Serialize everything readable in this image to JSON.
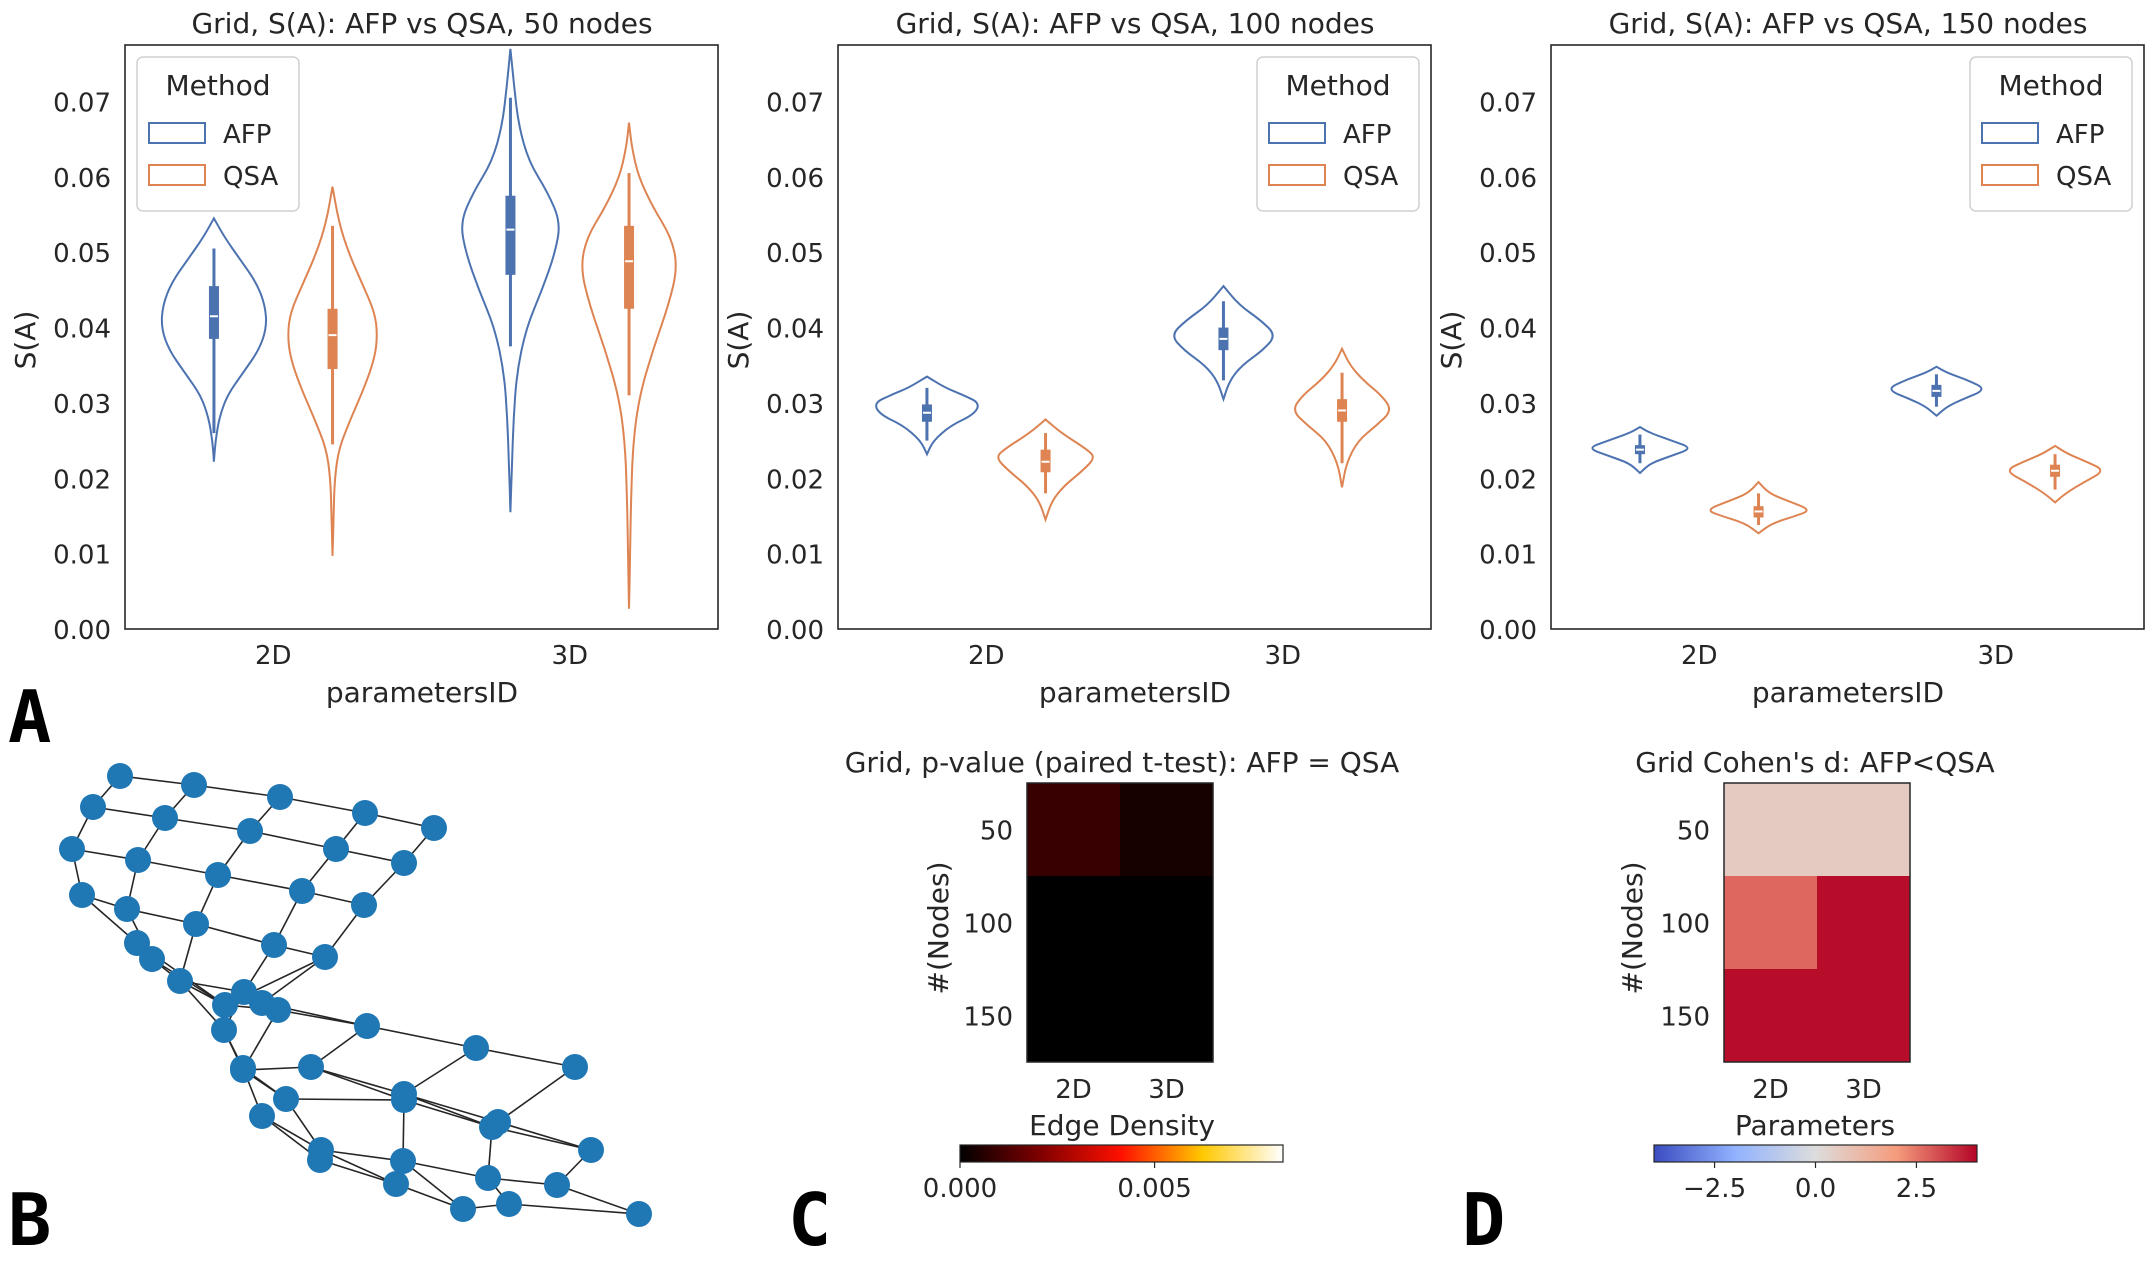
{
  "panels": {
    "A": "A",
    "B": "B",
    "C": "C",
    "D": "D"
  },
  "colors": {
    "afp": "#4c72b0",
    "qsa": "#dd8452",
    "node": "#1f77b4",
    "edge": "#262626"
  },
  "chart_data": [
    {
      "type": "violin",
      "id": "violin-50",
      "title": "Grid, S(A): AFP vs QSA, 50 nodes",
      "xlabel": "parametersID",
      "ylabel": "S(A)",
      "categories": [
        "2D",
        "3D"
      ],
      "ylim": [
        0,
        0.0775
      ],
      "yticks": [
        "0.00",
        "0.01",
        "0.02",
        "0.03",
        "0.04",
        "0.05",
        "0.06",
        "0.07"
      ],
      "legend": {
        "title": "Method",
        "position": "upper-left",
        "entries": [
          "AFP",
          "QSA"
        ]
      },
      "series": [
        {
          "name": "AFP",
          "violins": [
            {
              "category": "2D",
              "min": 0.0222,
              "max": 0.0545,
              "q1": 0.0385,
              "median": 0.0415,
              "q3": 0.0455,
              "wlo": 0.026,
              "whi": 0.0505,
              "profile": [
                [
                  0.0222,
                  0.0
                ],
                [
                  0.025,
                  0.03
                ],
                [
                  0.028,
                  0.1
                ],
                [
                  0.031,
                  0.25
                ],
                [
                  0.034,
                  0.55
                ],
                [
                  0.037,
                  0.85
                ],
                [
                  0.04,
                  1.0
                ],
                [
                  0.043,
                  0.97
                ],
                [
                  0.046,
                  0.8
                ],
                [
                  0.049,
                  0.5
                ],
                [
                  0.052,
                  0.2
                ],
                [
                  0.0545,
                  0.0
                ]
              ]
            },
            {
              "category": "3D",
              "min": 0.0155,
              "max": 0.077,
              "q1": 0.047,
              "median": 0.053,
              "q3": 0.0575,
              "wlo": 0.0375,
              "whi": 0.0705,
              "profile": [
                [
                  0.0155,
                  0.0
                ],
                [
                  0.022,
                  0.03
                ],
                [
                  0.028,
                  0.06
                ],
                [
                  0.034,
                  0.12
                ],
                [
                  0.04,
                  0.3
                ],
                [
                  0.045,
                  0.6
                ],
                [
                  0.05,
                  0.85
                ],
                [
                  0.054,
                  0.95
                ],
                [
                  0.058,
                  0.7
                ],
                [
                  0.062,
                  0.35
                ],
                [
                  0.067,
                  0.15
                ],
                [
                  0.072,
                  0.07
                ],
                [
                  0.077,
                  0.0
                ]
              ]
            }
          ]
        },
        {
          "name": "QSA",
          "violins": [
            {
              "category": "2D",
              "min": 0.0097,
              "max": 0.0587,
              "q1": 0.0345,
              "median": 0.039,
              "q3": 0.0425,
              "wlo": 0.0245,
              "whi": 0.0535,
              "profile": [
                [
                  0.0097,
                  0.0
                ],
                [
                  0.015,
                  0.02
                ],
                [
                  0.02,
                  0.04
                ],
                [
                  0.024,
                  0.12
                ],
                [
                  0.028,
                  0.35
                ],
                [
                  0.032,
                  0.6
                ],
                [
                  0.036,
                  0.8
                ],
                [
                  0.039,
                  0.85
                ],
                [
                  0.042,
                  0.8
                ],
                [
                  0.046,
                  0.55
                ],
                [
                  0.05,
                  0.3
                ],
                [
                  0.054,
                  0.12
                ],
                [
                  0.0587,
                  0.0
                ]
              ]
            },
            {
              "category": "3D",
              "min": 0.0027,
              "max": 0.0672,
              "q1": 0.0425,
              "median": 0.0488,
              "q3": 0.0535,
              "wlo": 0.031,
              "whi": 0.0605,
              "profile": [
                [
                  0.0027,
                  0.0
                ],
                [
                  0.01,
                  0.02
                ],
                [
                  0.018,
                  0.04
                ],
                [
                  0.025,
                  0.08
                ],
                [
                  0.031,
                  0.2
                ],
                [
                  0.037,
                  0.45
                ],
                [
                  0.043,
                  0.75
                ],
                [
                  0.048,
                  0.92
                ],
                [
                  0.052,
                  0.8
                ],
                [
                  0.056,
                  0.45
                ],
                [
                  0.06,
                  0.18
                ],
                [
                  0.064,
                  0.05
                ],
                [
                  0.0672,
                  0.0
                ]
              ]
            }
          ]
        }
      ]
    },
    {
      "type": "violin",
      "id": "violin-100",
      "title": "Grid, S(A): AFP vs QSA, 100 nodes",
      "xlabel": "parametersID",
      "ylabel": "S(A)",
      "categories": [
        "2D",
        "3D"
      ],
      "ylim": [
        0,
        0.0775
      ],
      "yticks": [
        "0.00",
        "0.01",
        "0.02",
        "0.03",
        "0.04",
        "0.05",
        "0.06",
        "0.07"
      ],
      "legend": {
        "title": "Method",
        "position": "upper-right",
        "entries": [
          "AFP",
          "QSA"
        ]
      },
      "series": [
        {
          "name": "AFP",
          "violins": [
            {
              "category": "2D",
              "min": 0.0232,
              "max": 0.0335,
              "q1": 0.0275,
              "median": 0.0287,
              "q3": 0.0298,
              "wlo": 0.025,
              "whi": 0.032,
              "profile": [
                [
                  0.0232,
                  0.0
                ],
                [
                  0.025,
                  0.12
                ],
                [
                  0.027,
                  0.45
                ],
                [
                  0.0285,
                  0.9
                ],
                [
                  0.03,
                  1.0
                ],
                [
                  0.031,
                  0.7
                ],
                [
                  0.032,
                  0.35
                ],
                [
                  0.0335,
                  0.0
                ]
              ]
            },
            {
              "category": "3D",
              "min": 0.0305,
              "max": 0.0455,
              "q1": 0.037,
              "median": 0.0385,
              "q3": 0.04,
              "wlo": 0.033,
              "whi": 0.0435,
              "profile": [
                [
                  0.0305,
                  0.0
                ],
                [
                  0.033,
                  0.12
                ],
                [
                  0.035,
                  0.35
                ],
                [
                  0.037,
                  0.75
                ],
                [
                  0.039,
                  1.0
                ],
                [
                  0.041,
                  0.7
                ],
                [
                  0.043,
                  0.3
                ],
                [
                  0.0455,
                  0.0
                ]
              ]
            }
          ]
        },
        {
          "name": "QSA",
          "violins": [
            {
              "category": "2D",
              "min": 0.0145,
              "max": 0.0278,
              "q1": 0.0208,
              "median": 0.0222,
              "q3": 0.0238,
              "wlo": 0.018,
              "whi": 0.026,
              "profile": [
                [
                  0.0145,
                  0.0
                ],
                [
                  0.017,
                  0.12
                ],
                [
                  0.019,
                  0.35
                ],
                [
                  0.021,
                  0.7
                ],
                [
                  0.0228,
                  0.95
                ],
                [
                  0.024,
                  0.75
                ],
                [
                  0.026,
                  0.3
                ],
                [
                  0.0278,
                  0.0
                ]
              ]
            },
            {
              "category": "3D",
              "min": 0.0188,
              "max": 0.0372,
              "q1": 0.0275,
              "median": 0.029,
              "q3": 0.0305,
              "wlo": 0.022,
              "whi": 0.034,
              "profile": [
                [
                  0.0188,
                  0.0
                ],
                [
                  0.022,
                  0.08
                ],
                [
                  0.025,
                  0.3
                ],
                [
                  0.027,
                  0.65
                ],
                [
                  0.029,
                  0.95
                ],
                [
                  0.031,
                  0.75
                ],
                [
                  0.033,
                  0.4
                ],
                [
                  0.035,
                  0.15
                ],
                [
                  0.0372,
                  0.0
                ]
              ]
            }
          ]
        }
      ]
    },
    {
      "type": "violin",
      "id": "violin-150",
      "title": "Grid, S(A): AFP vs QSA, 150 nodes",
      "xlabel": "parametersID",
      "ylabel": "S(A)",
      "categories": [
        "2D",
        "3D"
      ],
      "ylim": [
        0,
        0.0775
      ],
      "yticks": [
        "0.00",
        "0.01",
        "0.02",
        "0.03",
        "0.04",
        "0.05",
        "0.06",
        "0.07"
      ],
      "legend": {
        "title": "Method",
        "position": "upper-right",
        "entries": [
          "AFP",
          "QSA"
        ]
      },
      "series": [
        {
          "name": "AFP",
          "violins": [
            {
              "category": "2D",
              "min": 0.0207,
              "max": 0.0268,
              "q1": 0.0232,
              "median": 0.0238,
              "q3": 0.0244,
              "wlo": 0.022,
              "whi": 0.0258,
              "profile": [
                [
                  0.0207,
                  0.0
                ],
                [
                  0.022,
                  0.2
                ],
                [
                  0.023,
                  0.6
                ],
                [
                  0.024,
                  1.0
                ],
                [
                  0.025,
                  0.6
                ],
                [
                  0.026,
                  0.2
                ],
                [
                  0.0268,
                  0.0
                ]
              ]
            },
            {
              "category": "3D",
              "min": 0.0283,
              "max": 0.0348,
              "q1": 0.0308,
              "median": 0.0316,
              "q3": 0.0324,
              "wlo": 0.0295,
              "whi": 0.0338,
              "profile": [
                [
                  0.0283,
                  0.0
                ],
                [
                  0.0295,
                  0.2
                ],
                [
                  0.0305,
                  0.5
                ],
                [
                  0.0318,
                  0.95
                ],
                [
                  0.033,
                  0.6
                ],
                [
                  0.034,
                  0.2
                ],
                [
                  0.0348,
                  0.0
                ]
              ]
            }
          ]
        },
        {
          "name": "QSA",
          "violins": [
            {
              "category": "2D",
              "min": 0.0127,
              "max": 0.0195,
              "q1": 0.0148,
              "median": 0.0156,
              "q3": 0.0163,
              "wlo": 0.0138,
              "whi": 0.018,
              "profile": [
                [
                  0.0127,
                  0.0
                ],
                [
                  0.014,
                  0.25
                ],
                [
                  0.015,
                  0.7
                ],
                [
                  0.0158,
                  1.0
                ],
                [
                  0.017,
                  0.55
                ],
                [
                  0.018,
                  0.2
                ],
                [
                  0.0195,
                  0.0
                ]
              ]
            },
            {
              "category": "3D",
              "min": 0.0168,
              "max": 0.0243,
              "q1": 0.0202,
              "median": 0.021,
              "q3": 0.0218,
              "wlo": 0.0185,
              "whi": 0.0232,
              "profile": [
                [
                  0.0168,
                  0.0
                ],
                [
                  0.018,
                  0.2
                ],
                [
                  0.0195,
                  0.55
                ],
                [
                  0.021,
                  0.95
                ],
                [
                  0.0222,
                  0.6
                ],
                [
                  0.0232,
                  0.25
                ],
                [
                  0.0243,
                  0.0
                ]
              ]
            }
          ]
        }
      ]
    },
    {
      "type": "heatmap",
      "id": "heatmap-pvalue",
      "title": "Grid, p-value (paired t-test): AFP = QSA",
      "xlabel": "Edge Density",
      "ylabel": "#(Nodes)",
      "x": [
        "2D",
        "3D"
      ],
      "y": [
        "50",
        "100",
        "150"
      ],
      "values": [
        [
          0.0009,
          0.00035
        ],
        [
          1e-05,
          5e-06
        ],
        [
          1e-06,
          1e-06
        ]
      ],
      "colormap": "afmhot",
      "vmin": 0,
      "vmax": 0.0083,
      "colorbar_ticks": [
        {
          "value": 0,
          "label": "0.000"
        },
        {
          "value": 0.005,
          "label": "0.005"
        }
      ]
    },
    {
      "type": "heatmap",
      "id": "heatmap-cohens-d",
      "title": "Grid Cohen's d: AFP<QSA",
      "xlabel": "Parameters",
      "ylabel": "#(Nodes)",
      "x": [
        "2D",
        "3D"
      ],
      "y": [
        "50",
        "100",
        "150"
      ],
      "values": [
        [
          0.6,
          0.6
        ],
        [
          2.7,
          3.9
        ],
        [
          3.9,
          3.9
        ]
      ],
      "colormap": "coolwarm",
      "vmin": -4,
      "vmax": 4,
      "colorbar_ticks": [
        {
          "value": -2.5,
          "label": "−2.5"
        },
        {
          "value": 0,
          "label": "0.0"
        },
        {
          "value": 2.5,
          "label": "2.5"
        }
      ]
    }
  ]
}
